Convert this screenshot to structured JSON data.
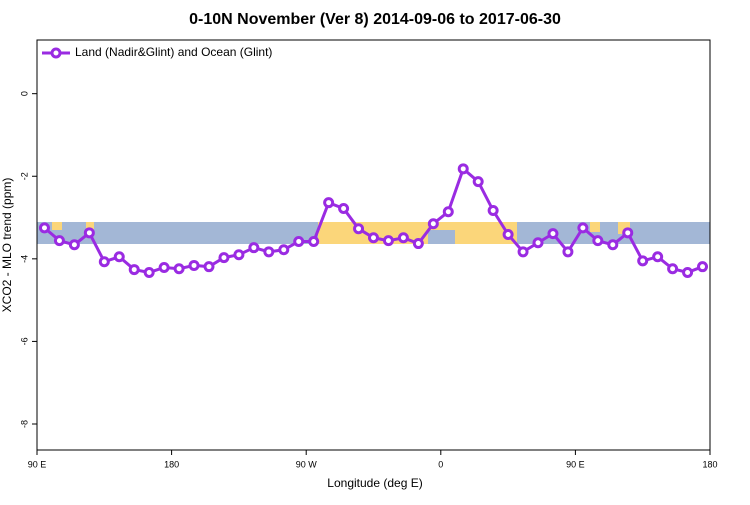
{
  "chart_data": {
    "type": "line",
    "title": "0-10N November (Ver 8)   2014-09-06 to 2017-06-30",
    "x_label": "Longitude (deg E)",
    "y_label": "XCO2 - MLO trend (ppm)",
    "xlim": [
      90,
      540
    ],
    "xticks": [
      {
        "value": 90,
        "label": "90 E"
      },
      180,
      {
        "value": 270,
        "label": "90 W"
      },
      {
        "value": 360,
        "label": "0"
      },
      {
        "value": 450,
        "label": "90 E"
      },
      {
        "value": 540,
        "label": "180"
      }
    ],
    "ylim": [
      -8.63,
      1.3
    ],
    "yticks": [
      0,
      -2,
      -4,
      -6,
      -8
    ],
    "legend": "top-left",
    "x": [
      95,
      105,
      115,
      125,
      135,
      145,
      155,
      165,
      175,
      185,
      195,
      205,
      215,
      225,
      235,
      245,
      255,
      265,
      275,
      285,
      295,
      305,
      315,
      325,
      335,
      345,
      355,
      365,
      375,
      385,
      395,
      405,
      415,
      425,
      435,
      445,
      455,
      465,
      475,
      485,
      495,
      505,
      515,
      525,
      535
    ],
    "series": [
      {
        "name": "Land (Nadir&Glint) and Ocean (Glint)",
        "color": "#9a2be2",
        "values": [
          -3.25,
          -3.56,
          -3.66,
          -3.37,
          -4.07,
          -3.95,
          -4.26,
          -4.33,
          -4.21,
          -4.24,
          -4.16,
          -4.19,
          -3.97,
          -3.9,
          -3.73,
          -3.83,
          -3.78,
          -3.58,
          -3.58,
          -2.64,
          -2.78,
          -3.27,
          -3.49,
          -3.56,
          -3.49,
          -3.63,
          -3.15,
          -2.86,
          -1.82,
          -2.13,
          -2.83,
          -3.41,
          -3.83,
          -3.61,
          -3.39,
          -3.83,
          -3.25,
          -3.56,
          -3.66,
          -3.37,
          -4.05,
          -3.95,
          -4.24,
          -4.33,
          -4.19
        ]
      }
    ]
  }
}
